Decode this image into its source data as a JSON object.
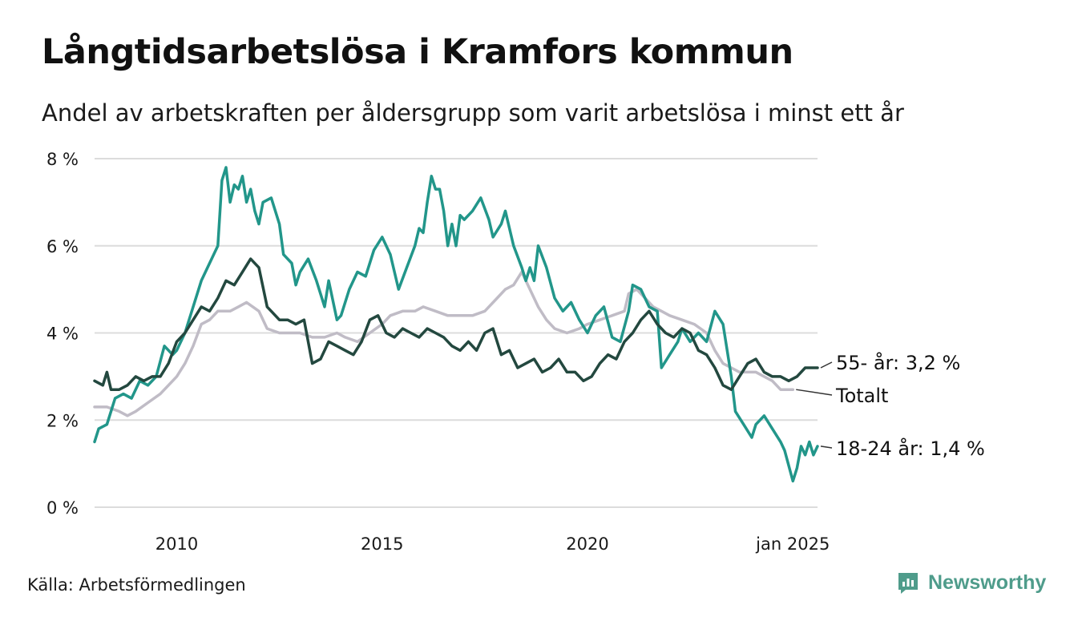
{
  "title": "Långtidsarbetslösa i Kramfors kommun",
  "subtitle": "Andel av arbetskraften per åldersgrupp som varit arbetslösa i minst ett år",
  "source": "Källa: Arbetsförmedlingen",
  "brand": {
    "name": "Newsworthy",
    "icon": "newsworthy-logo-icon",
    "color": "#4f9c8b"
  },
  "chart_data": {
    "type": "line",
    "x_unit": "year",
    "x_range": [
      2008.0,
      2025.0
    ],
    "ylim": [
      0,
      8
    ],
    "y_ticks": [
      0,
      2,
      4,
      6,
      8
    ],
    "y_tick_labels": [
      "0 %",
      "2 %",
      "4 %",
      "6 %",
      "8 %"
    ],
    "x_ticks": [
      2010,
      2015,
      2020,
      2025
    ],
    "x_tick_labels": [
      "2010",
      "2015",
      "2020",
      "jan 2025"
    ],
    "grid": "horizontal",
    "series": [
      {
        "name": "Totalt",
        "end_label": "Totalt",
        "color": "#c0bcc6",
        "points": [
          [
            2008.0,
            2.3
          ],
          [
            2008.3,
            2.3
          ],
          [
            2008.6,
            2.2
          ],
          [
            2008.8,
            2.1
          ],
          [
            2009.0,
            2.2
          ],
          [
            2009.3,
            2.4
          ],
          [
            2009.6,
            2.6
          ],
          [
            2009.8,
            2.8
          ],
          [
            2010.0,
            3.0
          ],
          [
            2010.2,
            3.3
          ],
          [
            2010.4,
            3.7
          ],
          [
            2010.6,
            4.2
          ],
          [
            2010.8,
            4.3
          ],
          [
            2011.0,
            4.5
          ],
          [
            2011.3,
            4.5
          ],
          [
            2011.5,
            4.6
          ],
          [
            2011.7,
            4.7
          ],
          [
            2012.0,
            4.5
          ],
          [
            2012.2,
            4.1
          ],
          [
            2012.5,
            4.0
          ],
          [
            2012.8,
            4.0
          ],
          [
            2013.0,
            4.0
          ],
          [
            2013.3,
            3.9
          ],
          [
            2013.6,
            3.9
          ],
          [
            2013.9,
            4.0
          ],
          [
            2014.1,
            3.9
          ],
          [
            2014.4,
            3.8
          ],
          [
            2014.7,
            4.0
          ],
          [
            2015.0,
            4.2
          ],
          [
            2015.2,
            4.4
          ],
          [
            2015.5,
            4.5
          ],
          [
            2015.8,
            4.5
          ],
          [
            2016.0,
            4.6
          ],
          [
            2016.3,
            4.5
          ],
          [
            2016.6,
            4.4
          ],
          [
            2016.9,
            4.4
          ],
          [
            2017.2,
            4.4
          ],
          [
            2017.5,
            4.5
          ],
          [
            2017.8,
            4.8
          ],
          [
            2018.0,
            5.0
          ],
          [
            2018.2,
            5.1
          ],
          [
            2018.4,
            5.4
          ],
          [
            2018.6,
            5.0
          ],
          [
            2018.8,
            4.6
          ],
          [
            2019.0,
            4.3
          ],
          [
            2019.2,
            4.1
          ],
          [
            2019.5,
            4.0
          ],
          [
            2019.8,
            4.1
          ],
          [
            2020.0,
            4.2
          ],
          [
            2020.3,
            4.3
          ],
          [
            2020.6,
            4.4
          ],
          [
            2020.9,
            4.5
          ],
          [
            2021.0,
            4.9
          ],
          [
            2021.2,
            5.0
          ],
          [
            2021.4,
            4.8
          ],
          [
            2021.6,
            4.6
          ],
          [
            2021.8,
            4.5
          ],
          [
            2022.0,
            4.4
          ],
          [
            2022.3,
            4.3
          ],
          [
            2022.6,
            4.2
          ],
          [
            2022.9,
            4.0
          ],
          [
            2023.1,
            3.6
          ],
          [
            2023.3,
            3.3
          ],
          [
            2023.5,
            3.2
          ],
          [
            2023.7,
            3.1
          ],
          [
            2023.9,
            3.1
          ],
          [
            2024.1,
            3.1
          ],
          [
            2024.3,
            3.0
          ],
          [
            2024.5,
            2.9
          ],
          [
            2024.7,
            2.7
          ],
          [
            2024.9,
            2.7
          ],
          [
            2025.0,
            2.7
          ]
        ]
      },
      {
        "name": "18-24 år",
        "end_label": "18-24 år: 1,4 %",
        "color": "#22968a",
        "points": [
          [
            2008.0,
            1.5
          ],
          [
            2008.1,
            1.8
          ],
          [
            2008.3,
            1.9
          ],
          [
            2008.5,
            2.5
          ],
          [
            2008.7,
            2.6
          ],
          [
            2008.9,
            2.5
          ],
          [
            2009.1,
            2.9
          ],
          [
            2009.3,
            2.8
          ],
          [
            2009.5,
            3.0
          ],
          [
            2009.7,
            3.7
          ],
          [
            2009.9,
            3.5
          ],
          [
            2010.0,
            3.6
          ],
          [
            2010.2,
            4.0
          ],
          [
            2010.4,
            4.6
          ],
          [
            2010.6,
            5.2
          ],
          [
            2010.8,
            5.6
          ],
          [
            2011.0,
            6.0
          ],
          [
            2011.1,
            7.5
          ],
          [
            2011.2,
            7.8
          ],
          [
            2011.3,
            7.0
          ],
          [
            2011.4,
            7.4
          ],
          [
            2011.5,
            7.3
          ],
          [
            2011.6,
            7.6
          ],
          [
            2011.7,
            7.0
          ],
          [
            2011.8,
            7.3
          ],
          [
            2011.9,
            6.8
          ],
          [
            2012.0,
            6.5
          ],
          [
            2012.1,
            7.0
          ],
          [
            2012.3,
            7.1
          ],
          [
            2012.5,
            6.5
          ],
          [
            2012.6,
            5.8
          ],
          [
            2012.8,
            5.6
          ],
          [
            2012.9,
            5.1
          ],
          [
            2013.0,
            5.4
          ],
          [
            2013.2,
            5.7
          ],
          [
            2013.4,
            5.2
          ],
          [
            2013.6,
            4.6
          ],
          [
            2013.7,
            5.2
          ],
          [
            2013.9,
            4.3
          ],
          [
            2014.0,
            4.4
          ],
          [
            2014.2,
            5.0
          ],
          [
            2014.4,
            5.4
          ],
          [
            2014.6,
            5.3
          ],
          [
            2014.8,
            5.9
          ],
          [
            2015.0,
            6.2
          ],
          [
            2015.2,
            5.8
          ],
          [
            2015.4,
            5.0
          ],
          [
            2015.6,
            5.5
          ],
          [
            2015.8,
            6.0
          ],
          [
            2015.9,
            6.4
          ],
          [
            2016.0,
            6.3
          ],
          [
            2016.1,
            7.0
          ],
          [
            2016.2,
            7.6
          ],
          [
            2016.3,
            7.3
          ],
          [
            2016.4,
            7.3
          ],
          [
            2016.5,
            6.8
          ],
          [
            2016.6,
            6.0
          ],
          [
            2016.7,
            6.5
          ],
          [
            2016.8,
            6.0
          ],
          [
            2016.9,
            6.7
          ],
          [
            2017.0,
            6.6
          ],
          [
            2017.2,
            6.8
          ],
          [
            2017.4,
            7.1
          ],
          [
            2017.6,
            6.6
          ],
          [
            2017.7,
            6.2
          ],
          [
            2017.9,
            6.5
          ],
          [
            2018.0,
            6.8
          ],
          [
            2018.2,
            6.0
          ],
          [
            2018.4,
            5.5
          ],
          [
            2018.5,
            5.2
          ],
          [
            2018.6,
            5.5
          ],
          [
            2018.7,
            5.2
          ],
          [
            2018.8,
            6.0
          ],
          [
            2019.0,
            5.5
          ],
          [
            2019.2,
            4.8
          ],
          [
            2019.4,
            4.5
          ],
          [
            2019.6,
            4.7
          ],
          [
            2019.8,
            4.3
          ],
          [
            2020.0,
            4.0
          ],
          [
            2020.2,
            4.4
          ],
          [
            2020.4,
            4.6
          ],
          [
            2020.6,
            3.9
          ],
          [
            2020.8,
            3.8
          ],
          [
            2021.0,
            4.5
          ],
          [
            2021.1,
            5.1
          ],
          [
            2021.3,
            5.0
          ],
          [
            2021.5,
            4.6
          ],
          [
            2021.7,
            4.5
          ],
          [
            2021.8,
            3.2
          ],
          [
            2022.0,
            3.5
          ],
          [
            2022.2,
            3.8
          ],
          [
            2022.3,
            4.1
          ],
          [
            2022.5,
            3.8
          ],
          [
            2022.7,
            4.0
          ],
          [
            2022.9,
            3.8
          ],
          [
            2023.1,
            4.5
          ],
          [
            2023.3,
            4.2
          ],
          [
            2023.5,
            3.0
          ],
          [
            2023.6,
            2.2
          ],
          [
            2023.8,
            1.9
          ],
          [
            2024.0,
            1.6
          ],
          [
            2024.1,
            1.9
          ],
          [
            2024.3,
            2.1
          ],
          [
            2024.5,
            1.8
          ],
          [
            2024.7,
            1.5
          ],
          [
            2024.8,
            1.3
          ],
          [
            2025.0,
            0.6
          ],
          [
            2025.1,
            0.9
          ],
          [
            2025.2,
            1.4
          ],
          [
            2025.3,
            1.2
          ],
          [
            2025.4,
            1.5
          ],
          [
            2025.5,
            1.2
          ],
          [
            2025.6,
            1.4
          ]
        ]
      },
      {
        "name": "55- år",
        "end_label": "55- år: 3,2 %",
        "color": "#23483f",
        "points": [
          [
            2008.0,
            2.9
          ],
          [
            2008.2,
            2.8
          ],
          [
            2008.3,
            3.1
          ],
          [
            2008.4,
            2.7
          ],
          [
            2008.6,
            2.7
          ],
          [
            2008.8,
            2.8
          ],
          [
            2009.0,
            3.0
          ],
          [
            2009.2,
            2.9
          ],
          [
            2009.4,
            3.0
          ],
          [
            2009.6,
            3.0
          ],
          [
            2009.8,
            3.3
          ],
          [
            2010.0,
            3.8
          ],
          [
            2010.2,
            4.0
          ],
          [
            2010.4,
            4.3
          ],
          [
            2010.6,
            4.6
          ],
          [
            2010.8,
            4.5
          ],
          [
            2011.0,
            4.8
          ],
          [
            2011.2,
            5.2
          ],
          [
            2011.4,
            5.1
          ],
          [
            2011.6,
            5.4
          ],
          [
            2011.8,
            5.7
          ],
          [
            2012.0,
            5.5
          ],
          [
            2012.2,
            4.6
          ],
          [
            2012.3,
            4.5
          ],
          [
            2012.5,
            4.3
          ],
          [
            2012.7,
            4.3
          ],
          [
            2012.9,
            4.2
          ],
          [
            2013.1,
            4.3
          ],
          [
            2013.3,
            3.3
          ],
          [
            2013.5,
            3.4
          ],
          [
            2013.7,
            3.8
          ],
          [
            2013.9,
            3.7
          ],
          [
            2014.1,
            3.6
          ],
          [
            2014.3,
            3.5
          ],
          [
            2014.5,
            3.8
          ],
          [
            2014.7,
            4.3
          ],
          [
            2014.9,
            4.4
          ],
          [
            2015.1,
            4.0
          ],
          [
            2015.3,
            3.9
          ],
          [
            2015.5,
            4.1
          ],
          [
            2015.7,
            4.0
          ],
          [
            2015.9,
            3.9
          ],
          [
            2016.1,
            4.1
          ],
          [
            2016.3,
            4.0
          ],
          [
            2016.5,
            3.9
          ],
          [
            2016.7,
            3.7
          ],
          [
            2016.9,
            3.6
          ],
          [
            2017.1,
            3.8
          ],
          [
            2017.3,
            3.6
          ],
          [
            2017.5,
            4.0
          ],
          [
            2017.7,
            4.1
          ],
          [
            2017.9,
            3.5
          ],
          [
            2018.1,
            3.6
          ],
          [
            2018.3,
            3.2
          ],
          [
            2018.5,
            3.3
          ],
          [
            2018.7,
            3.4
          ],
          [
            2018.9,
            3.1
          ],
          [
            2019.1,
            3.2
          ],
          [
            2019.3,
            3.4
          ],
          [
            2019.5,
            3.1
          ],
          [
            2019.7,
            3.1
          ],
          [
            2019.9,
            2.9
          ],
          [
            2020.1,
            3.0
          ],
          [
            2020.3,
            3.3
          ],
          [
            2020.5,
            3.5
          ],
          [
            2020.7,
            3.4
          ],
          [
            2020.9,
            3.8
          ],
          [
            2021.1,
            4.0
          ],
          [
            2021.3,
            4.3
          ],
          [
            2021.5,
            4.5
          ],
          [
            2021.7,
            4.2
          ],
          [
            2021.9,
            4.0
          ],
          [
            2022.1,
            3.9
          ],
          [
            2022.3,
            4.1
          ],
          [
            2022.5,
            4.0
          ],
          [
            2022.7,
            3.6
          ],
          [
            2022.9,
            3.5
          ],
          [
            2023.1,
            3.2
          ],
          [
            2023.3,
            2.8
          ],
          [
            2023.5,
            2.7
          ],
          [
            2023.7,
            3.0
          ],
          [
            2023.9,
            3.3
          ],
          [
            2024.1,
            3.4
          ],
          [
            2024.3,
            3.1
          ],
          [
            2024.5,
            3.0
          ],
          [
            2024.7,
            3.0
          ],
          [
            2024.9,
            2.9
          ],
          [
            2025.1,
            3.0
          ],
          [
            2025.3,
            3.2
          ],
          [
            2025.6,
            3.2
          ]
        ]
      }
    ]
  }
}
